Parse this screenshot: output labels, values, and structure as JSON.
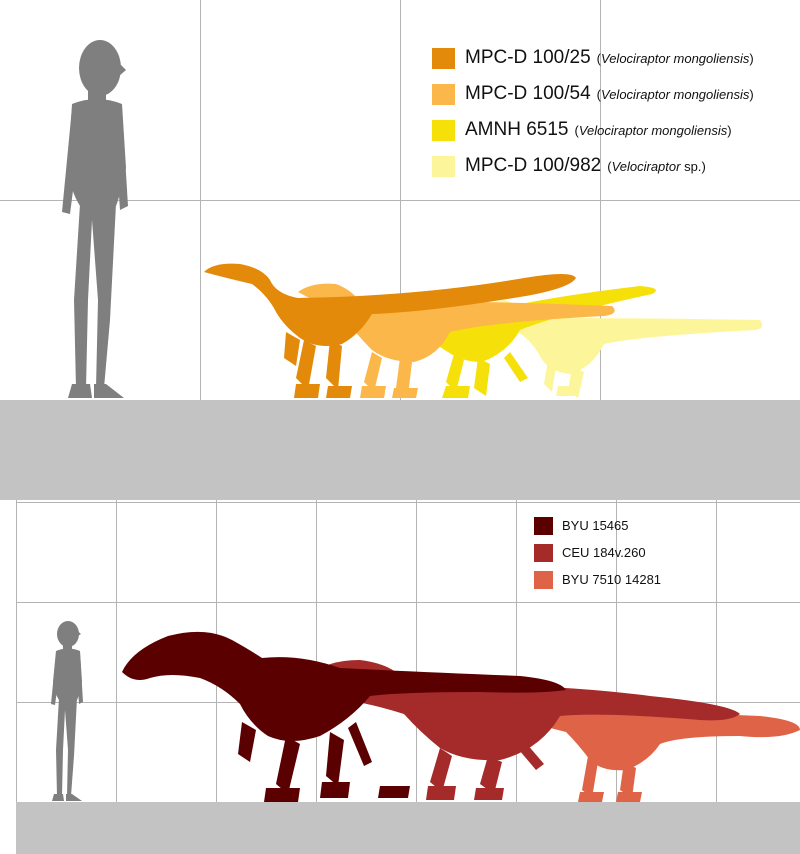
{
  "top_panel": {
    "legend": [
      {
        "code": "MPC-D 100/25",
        "species_genus": "Velociraptor mongoliensis",
        "species_suffix": "",
        "color": "#e38a0b"
      },
      {
        "code": "MPC-D 100/54",
        "species_genus": "Velociraptor mongoliensis",
        "species_suffix": "",
        "color": "#fbb74a"
      },
      {
        "code": "AMNH 6515",
        "species_genus": "Velociraptor mongoliensis",
        "species_suffix": "",
        "color": "#f6e00a"
      },
      {
        "code": "MPC-D 100/982",
        "species_genus": "Velociraptor",
        "species_suffix": " sp.",
        "color": "#fdf59a"
      }
    ]
  },
  "bottom_panel": {
    "legend": [
      {
        "code": "BYU 15465",
        "color": "#5a0000"
      },
      {
        "code": "CEU 184v.260",
        "color": "#a52a2a"
      },
      {
        "code": "BYU 7510 14281",
        "color": "#df6346"
      }
    ]
  },
  "colors": {
    "ground": "#c3c3c3",
    "grid": "#b4b4b4",
    "human": "#7f7f7f"
  }
}
